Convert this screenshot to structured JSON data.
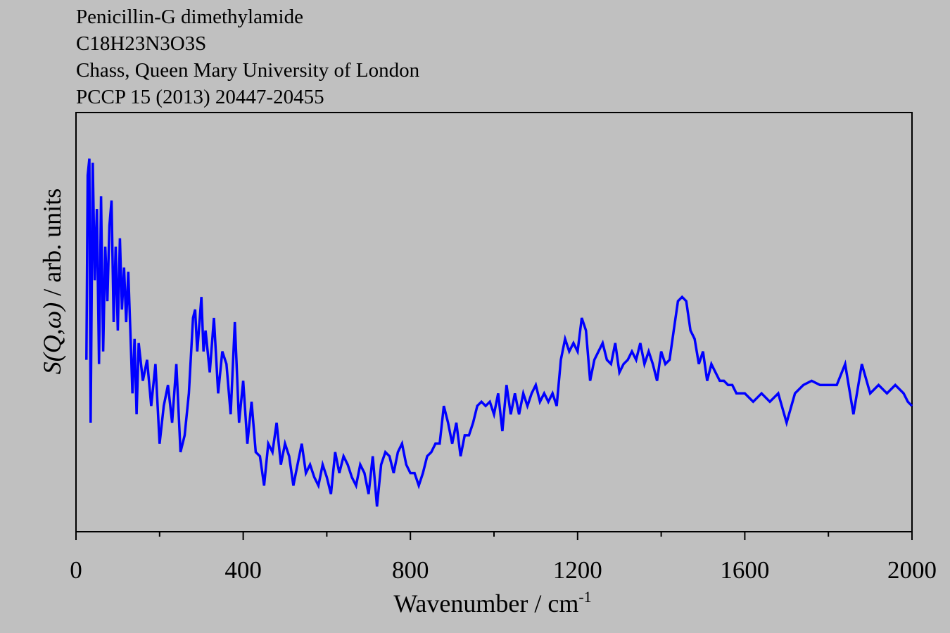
{
  "chart_data": {
    "type": "line",
    "title_lines": [
      "Penicillin-G dimethylamide",
      "C18H23N3O3S",
      "Chass, Queen Mary University of London",
      "PCCP 15 (2013) 20447-20455"
    ],
    "xlabel": "Wavenumber / cm",
    "xlabel_superscript": "-1",
    "ylabel_symbol": "S(Q,ω)",
    "ylabel": "/ arb. units",
    "xlim": [
      0,
      2000
    ],
    "xticks": [
      0,
      400,
      800,
      1200,
      1600,
      2000
    ],
    "xminorticks": [
      200,
      600,
      1000,
      1400,
      1800
    ],
    "ylim": [
      0,
      100
    ],
    "series": [
      {
        "color": "#0000ff",
        "x": [
          25,
          28,
          32,
          35,
          40,
          45,
          50,
          55,
          60,
          65,
          70,
          75,
          80,
          85,
          90,
          95,
          100,
          105,
          110,
          115,
          120,
          125,
          130,
          135,
          140,
          145,
          150,
          160,
          170,
          180,
          190,
          200,
          210,
          220,
          230,
          240,
          250,
          260,
          270,
          280,
          285,
          290,
          300,
          305,
          310,
          320,
          330,
          340,
          350,
          360,
          370,
          380,
          390,
          400,
          410,
          420,
          430,
          440,
          450,
          460,
          470,
          480,
          490,
          500,
          510,
          520,
          530,
          540,
          550,
          560,
          570,
          580,
          590,
          600,
          610,
          620,
          630,
          640,
          650,
          660,
          670,
          680,
          690,
          700,
          710,
          720,
          730,
          740,
          750,
          760,
          770,
          780,
          790,
          800,
          810,
          820,
          830,
          840,
          850,
          860,
          870,
          880,
          890,
          900,
          910,
          920,
          930,
          940,
          950,
          960,
          970,
          980,
          990,
          1000,
          1010,
          1020,
          1030,
          1040,
          1050,
          1060,
          1070,
          1080,
          1090,
          1100,
          1110,
          1120,
          1130,
          1140,
          1150,
          1160,
          1170,
          1180,
          1190,
          1200,
          1210,
          1220,
          1230,
          1240,
          1250,
          1260,
          1270,
          1280,
          1290,
          1300,
          1310,
          1320,
          1330,
          1340,
          1350,
          1360,
          1370,
          1380,
          1390,
          1400,
          1410,
          1420,
          1430,
          1440,
          1450,
          1460,
          1470,
          1480,
          1490,
          1500,
          1510,
          1520,
          1530,
          1540,
          1550,
          1560,
          1570,
          1580,
          1590,
          1600,
          1620,
          1640,
          1660,
          1680,
          1700,
          1720,
          1740,
          1760,
          1780,
          1800,
          1820,
          1840,
          1860,
          1880,
          1900,
          1920,
          1940,
          1960,
          1980,
          1990,
          2000
        ],
        "values": [
          41,
          85,
          89,
          26,
          88,
          60,
          77,
          40,
          80,
          43,
          68,
          55,
          73,
          79,
          50,
          68,
          48,
          70,
          53,
          63,
          50,
          62,
          48,
          33,
          46,
          28,
          45,
          36,
          41,
          30,
          40,
          21,
          30,
          35,
          26,
          40,
          19,
          23,
          33,
          51,
          53,
          43,
          56,
          43,
          48,
          38,
          51,
          33,
          43,
          40,
          28,
          50,
          26,
          36,
          21,
          31,
          19,
          18,
          11,
          21,
          19,
          26,
          16,
          21,
          18,
          11,
          16,
          21,
          14,
          16,
          13,
          11,
          16,
          13,
          9,
          19,
          14,
          18,
          16,
          13,
          11,
          16,
          14,
          9,
          18,
          6,
          16,
          19,
          18,
          14,
          19,
          21,
          16,
          14,
          14,
          11,
          14,
          18,
          19,
          21,
          21,
          30,
          26,
          21,
          26,
          18,
          23,
          23,
          26,
          30,
          31,
          30,
          31,
          28,
          33,
          24,
          35,
          28,
          33,
          28,
          33,
          30,
          33,
          35,
          31,
          33,
          31,
          33,
          30,
          41,
          46,
          43,
          45,
          43,
          51,
          48,
          36,
          41,
          43,
          45,
          41,
          40,
          45,
          38,
          40,
          41,
          43,
          41,
          45,
          40,
          43,
          40,
          36,
          43,
          40,
          41,
          48,
          55,
          56,
          55,
          48,
          46,
          40,
          43,
          36,
          40,
          38,
          36,
          36,
          35,
          35,
          33,
          33,
          33,
          31,
          33,
          31,
          33,
          26,
          33,
          35,
          36,
          35,
          35,
          35,
          40,
          28,
          40,
          33,
          35,
          33,
          35,
          33,
          31,
          30
        ]
      }
    ]
  }
}
